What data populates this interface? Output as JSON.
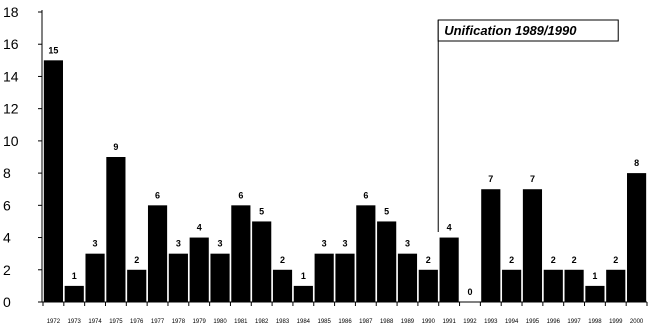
{
  "chart_data": {
    "type": "bar",
    "categories": [
      "1972",
      "1973",
      "1974",
      "1975",
      "1976",
      "1977",
      "1978",
      "1979",
      "1980",
      "1981",
      "1982",
      "1983",
      "1984",
      "1985",
      "1986",
      "1987",
      "1988",
      "1989",
      "1990",
      "1991",
      "1992",
      "1993",
      "1994",
      "1995",
      "1996",
      "1997",
      "1998",
      "1999",
      "2000"
    ],
    "values": [
      15,
      1,
      3,
      9,
      2,
      6,
      3,
      4,
      3,
      6,
      5,
      2,
      1,
      3,
      3,
      6,
      5,
      3,
      2,
      4,
      0,
      7,
      2,
      7,
      2,
      2,
      1,
      2,
      8
    ],
    "ylim": [
      0,
      18
    ],
    "yticks": [
      0,
      2,
      4,
      6,
      8,
      10,
      12,
      14,
      16,
      18
    ],
    "grid": false,
    "bar_color": "#000000",
    "annotation": {
      "text": "Unification 1989/1990",
      "x": "1990"
    }
  }
}
